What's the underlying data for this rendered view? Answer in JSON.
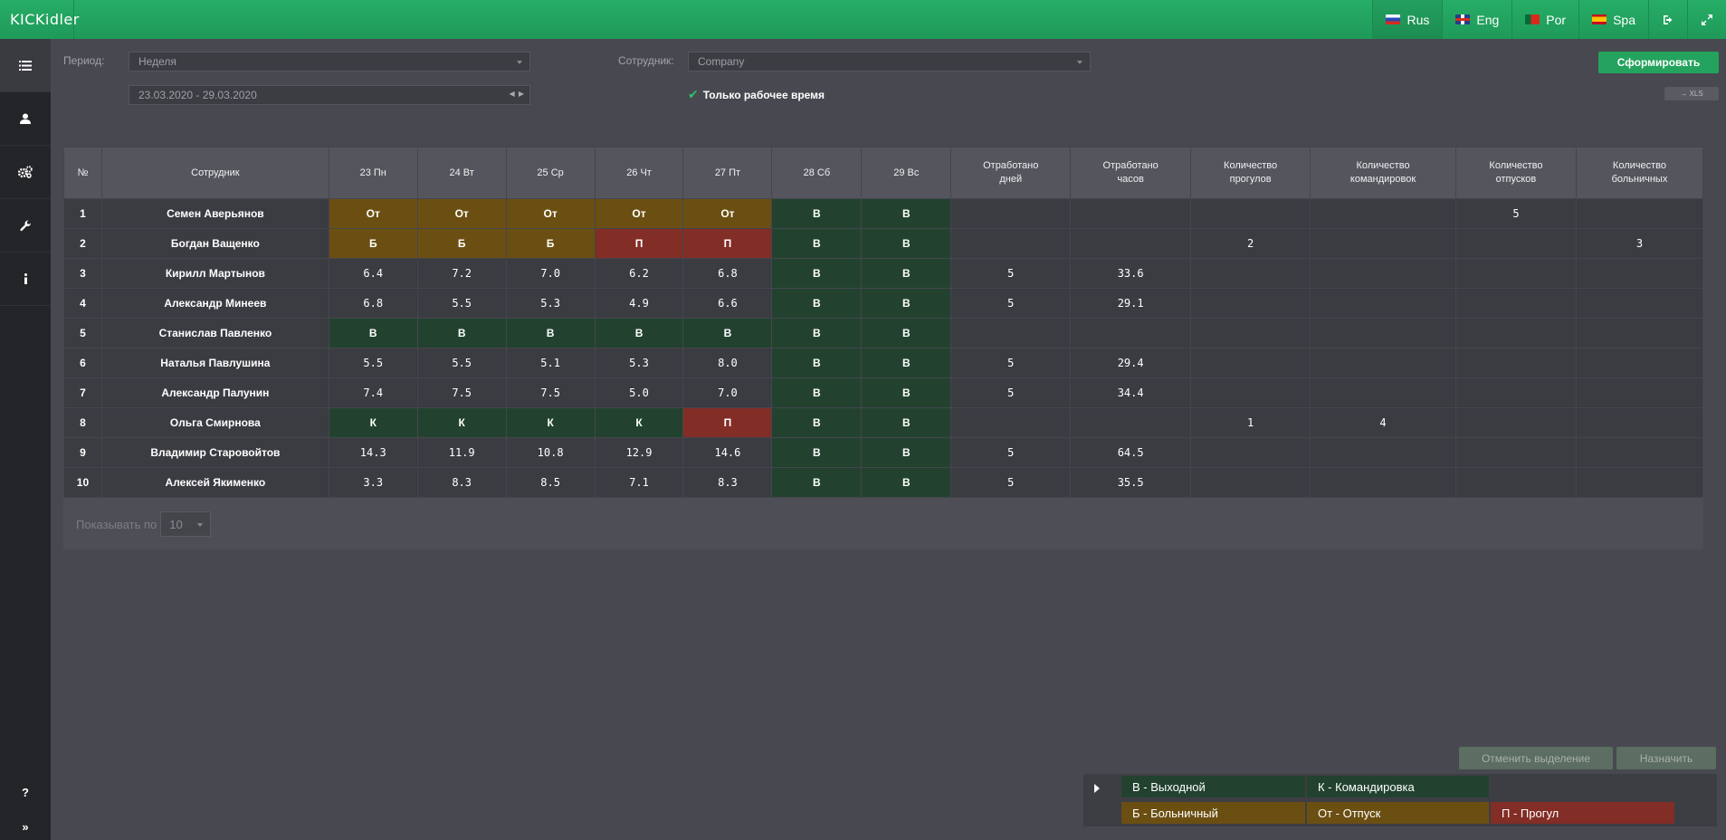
{
  "app": {
    "logo": "KICKidler"
  },
  "languages": [
    {
      "label": "Rus",
      "flag": "ru"
    },
    {
      "label": "Eng",
      "flag": "en"
    },
    {
      "label": "Por",
      "flag": "pt"
    },
    {
      "label": "Spa",
      "flag": "es"
    }
  ],
  "filters": {
    "period_label": "Период:",
    "period_value": "Неделя",
    "date_range": "23.03.2020 - 29.03.2020",
    "employee_label": "Сотрудник:",
    "employee_value": "Company",
    "work_time_only": "Только рабочее время",
    "generate_button": "Сформировать",
    "xls_button": "→ XLS"
  },
  "table": {
    "headers": [
      "№",
      "Сотрудник",
      "23 Пн",
      "24 Вт",
      "25 Ср",
      "26 Чт",
      "27 Пт",
      "28 Сб",
      "29 Вс",
      "Отработано\nдней",
      "Отработано\nчасов",
      "Количество\nпрогулов",
      "Количество\nкомандировок",
      "Количество\nотпусков",
      "Количество\nбольничных"
    ],
    "rows": [
      {
        "n": "1",
        "name": "Семен Аверьянов",
        "days": [
          "От",
          "От",
          "От",
          "От",
          "От",
          "В",
          "В"
        ],
        "worked_days": "",
        "worked_hours": "",
        "absences": "",
        "trips": "",
        "vacations": "5",
        "sick": ""
      },
      {
        "n": "2",
        "name": "Богдан Ващенко",
        "days": [
          "Б",
          "Б",
          "Б",
          "П",
          "П",
          "В",
          "В"
        ],
        "worked_days": "",
        "worked_hours": "",
        "absences": "2",
        "trips": "",
        "vacations": "",
        "sick": "3"
      },
      {
        "n": "3",
        "name": "Кирилл Мартынов",
        "days": [
          "6.4",
          "7.2",
          "7.0",
          "6.2",
          "6.8",
          "В",
          "В"
        ],
        "worked_days": "5",
        "worked_hours": "33.6",
        "absences": "",
        "trips": "",
        "vacations": "",
        "sick": ""
      },
      {
        "n": "4",
        "name": "Александр Минеев",
        "days": [
          "6.8",
          "5.5",
          "5.3",
          "4.9",
          "6.6",
          "В",
          "В"
        ],
        "worked_days": "5",
        "worked_hours": "29.1",
        "absences": "",
        "trips": "",
        "vacations": "",
        "sick": ""
      },
      {
        "n": "5",
        "name": "Станислав Павленко",
        "days": [
          "В",
          "В",
          "В",
          "В",
          "В",
          "В",
          "В"
        ],
        "worked_days": "",
        "worked_hours": "",
        "absences": "",
        "trips": "",
        "vacations": "",
        "sick": ""
      },
      {
        "n": "6",
        "name": "Наталья Павлушина",
        "days": [
          "5.5",
          "5.5",
          "5.1",
          "5.3",
          "8.0",
          "В",
          "В"
        ],
        "worked_days": "5",
        "worked_hours": "29.4",
        "absences": "",
        "trips": "",
        "vacations": "",
        "sick": ""
      },
      {
        "n": "7",
        "name": "Александр Палунин",
        "days": [
          "7.4",
          "7.5",
          "7.5",
          "5.0",
          "7.0",
          "В",
          "В"
        ],
        "worked_days": "5",
        "worked_hours": "34.4",
        "absences": "",
        "trips": "",
        "vacations": "",
        "sick": ""
      },
      {
        "n": "8",
        "name": "Ольга Смирнова",
        "days": [
          "К",
          "К",
          "К",
          "К",
          "П",
          "В",
          "В"
        ],
        "worked_days": "",
        "worked_hours": "",
        "absences": "1",
        "trips": "4",
        "vacations": "",
        "sick": ""
      },
      {
        "n": "9",
        "name": "Владимир Старовойтов",
        "days": [
          "14.3",
          "11.9",
          "10.8",
          "12.9",
          "14.6",
          "В",
          "В"
        ],
        "worked_days": "5",
        "worked_hours": "64.5",
        "absences": "",
        "trips": "",
        "vacations": "",
        "sick": ""
      },
      {
        "n": "10",
        "name": "Алексей Якименко",
        "days": [
          "3.3",
          "8.3",
          "8.5",
          "7.1",
          "8.3",
          "В",
          "В"
        ],
        "worked_days": "5",
        "worked_hours": "35.5",
        "absences": "",
        "trips": "",
        "vacations": "",
        "sick": ""
      }
    ]
  },
  "pager": {
    "label": "Показывать по",
    "value": "10"
  },
  "actions": {
    "clear_selection": "Отменить выделение",
    "assign": "Назначить"
  },
  "legend": {
    "weekend": "В - Выходной",
    "trip": "К - Командировка",
    "sick": "Б - Больничный",
    "vacation": "От - Отпуск",
    "absence": "П - Прогул"
  },
  "colors": {
    "accent": "#23a35d",
    "vacation_sick": "#6b4f12",
    "weekend_trip": "#22422f",
    "absence": "#822d26"
  }
}
